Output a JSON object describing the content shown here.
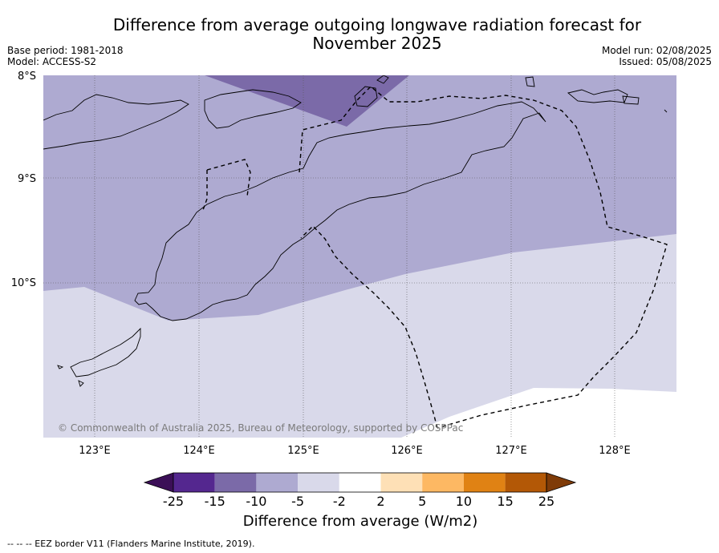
{
  "title_line1": "Difference from average outgoing longwave radiation forecast for",
  "title_line2": "November 2025",
  "base_period": "Base period: 1981-2018",
  "model": "Model: ACCESS-S2",
  "model_run": "Model run: 02/08/2025",
  "issued": "Issued: 05/08/2025",
  "latitude_labels": [
    "8°S",
    "9°S",
    "10°S"
  ],
  "longitude_labels": [
    "123°E",
    "124°E",
    "125°E",
    "126°E",
    "127°E",
    "128°E"
  ],
  "copyright": "© Commonwealth of Australia 2025, Bureau of Meteorology, supported by COSPPac",
  "colorbar": {
    "ticks": [
      "-25",
      "-15",
      "-10",
      "-5",
      "-2",
      "2",
      "5",
      "10",
      "15",
      "25"
    ],
    "colors": [
      "#3b0f57",
      "#54278f",
      "#7b6aa8",
      "#aeaad1",
      "#d9d9ea",
      "#ffffff",
      "#fee0b6",
      "#fdb863",
      "#e08214",
      "#b35806",
      "#7f3b08"
    ],
    "label": "Difference from average (W/m2)"
  },
  "footnote": "--  --  -- EEZ border V11 (Flanders Marine Institute, 2019).",
  "map": {
    "lon_range": [
      122.5,
      128.6
    ],
    "lat_range": [
      -11.5,
      -8.0
    ],
    "band_colors": {
      "-15_to_-10": "#7b6aa8",
      "-10_to_-5": "#aeaad1",
      "-5_to_-2": "#d9d9ea",
      "-2_to_2": "#ffffff"
    }
  }
}
